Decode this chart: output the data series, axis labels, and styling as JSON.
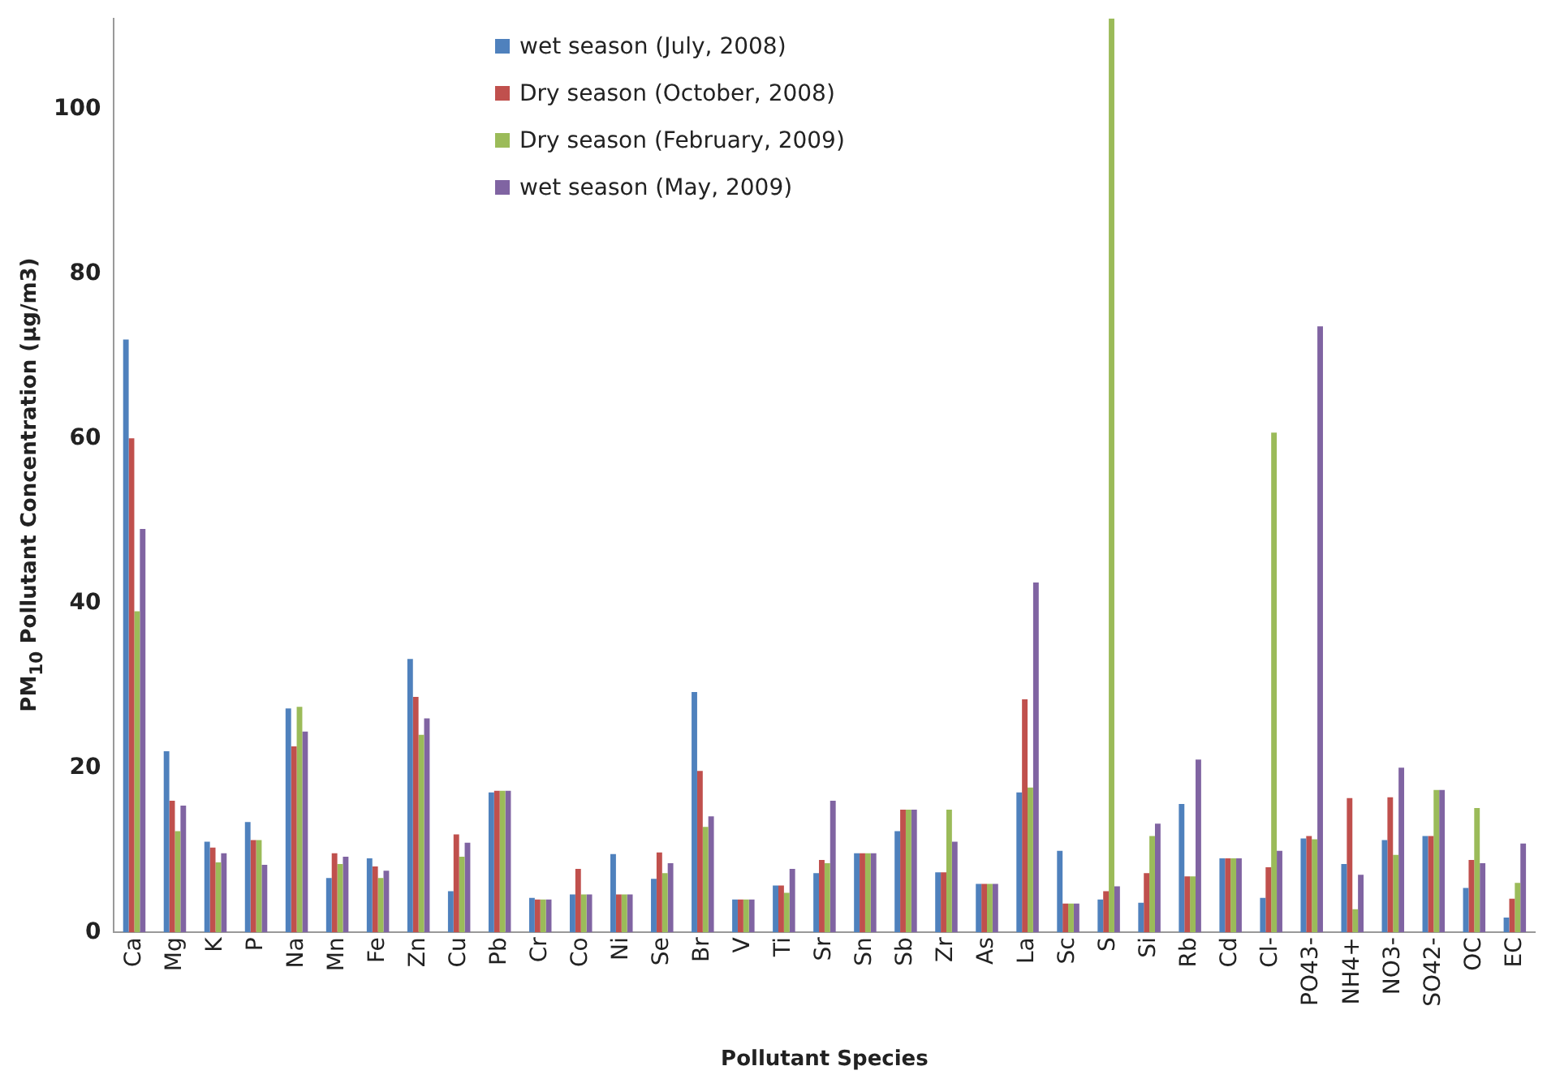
{
  "chart_data": {
    "type": "bar",
    "xlabel": "Pollutant Species",
    "ylabel": "PM$_{10}$ Pollutant Concentration (µg/m3)",
    "categories": [
      "Ca",
      "Mg",
      "K",
      "P",
      "Na",
      "Mn",
      "Fe",
      "Zn",
      "Cu",
      "Pb",
      "Cr",
      "Co",
      "Ni",
      "Se",
      "Br",
      "V",
      "Ti",
      "Sr",
      "Sn",
      "Sb",
      "Zr",
      "As",
      "La",
      "Sc",
      "S",
      "Si",
      "Rb",
      "Cd",
      "Cl-",
      "PO43-",
      "NH4+",
      "NO3-",
      "SO42-",
      "OC",
      "EC"
    ],
    "series": [
      {
        "name": "wet season (July, 2008)",
        "color": "#4f81bd",
        "values": [
          72,
          22,
          11,
          13.4,
          27.2,
          6.6,
          9,
          33.2,
          5,
          17,
          4.2,
          4.6,
          9.5,
          6.5,
          29.2,
          4,
          5.7,
          7.2,
          9.6,
          12.3,
          7.3,
          5.9,
          17,
          9.9,
          4,
          3.6,
          15.6,
          9,
          4.2,
          11.4,
          8.3,
          11.2,
          11.7,
          5.4,
          1.8
        ]
      },
      {
        "name": "Dry season (October, 2008)",
        "color": "#c0504d",
        "values": [
          60,
          16,
          10.3,
          11.2,
          22.6,
          9.6,
          8,
          28.6,
          11.9,
          17.2,
          4,
          7.7,
          4.6,
          9.7,
          19.6,
          4,
          5.7,
          8.8,
          9.6,
          14.9,
          7.3,
          5.9,
          28.3,
          3.5,
          5,
          7.2,
          6.8,
          9,
          7.9,
          11.7,
          16.3,
          16.4,
          11.7,
          8.8,
          4.1
        ]
      },
      {
        "name": "Dry season (February, 2009)",
        "color": "#9bbb59",
        "values": [
          39,
          12.3,
          8.5,
          11.2,
          27.4,
          8.3,
          6.6,
          24,
          9.2,
          17.2,
          4,
          4.6,
          4.6,
          7.2,
          12.8,
          4,
          4.8,
          8.4,
          9.6,
          14.9,
          14.9,
          5.9,
          17.6,
          3.5,
          111,
          11.7,
          6.8,
          9,
          60.7,
          11.3,
          2.8,
          9.4,
          17.3,
          15.1,
          6
        ]
      },
      {
        "name": "wet season (May, 2009)",
        "color": "#8064a2",
        "values": [
          49,
          15.4,
          9.6,
          8.2,
          24.4,
          9.2,
          7.5,
          26,
          10.9,
          17.2,
          4,
          4.6,
          4.6,
          8.4,
          14.1,
          4,
          7.7,
          16,
          9.6,
          14.9,
          11,
          5.9,
          42.5,
          3.5,
          5.6,
          13.2,
          21,
          9,
          9.9,
          73.6,
          7,
          20,
          17.3,
          8.4,
          10.8
        ]
      }
    ],
    "ylim": [
      0,
      111
    ],
    "yticks": [
      0,
      20,
      40,
      60,
      80,
      100
    ],
    "grid": false,
    "legend": "top"
  }
}
